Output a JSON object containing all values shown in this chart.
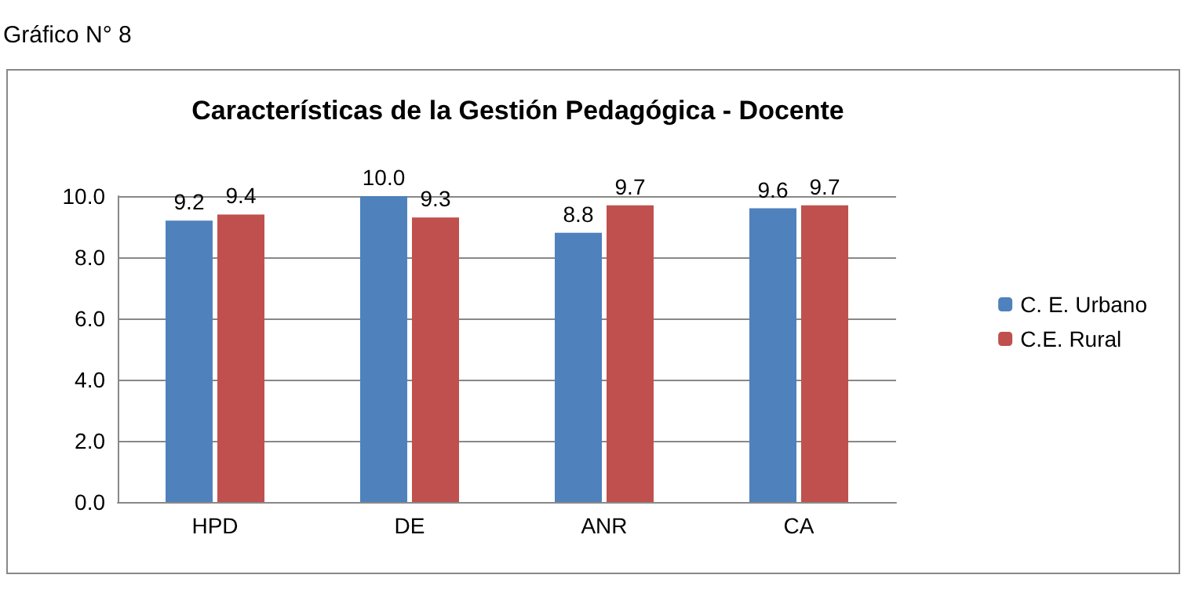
{
  "chart_data": {
    "type": "bar",
    "title": "Características de la Gestión Pedagógica - Docente",
    "annotations": [
      "Gráfico N° 8"
    ],
    "categories": [
      "HPD",
      "DE",
      "ANR",
      "CA"
    ],
    "series": [
      {
        "name": "C. E. Urbano",
        "color": "#4f81bd",
        "values": [
          9.2,
          10.0,
          8.8,
          9.6
        ],
        "value_labels": [
          "9.2",
          "10.0",
          "8.8",
          "9.6"
        ]
      },
      {
        "name": "C.E. Rural",
        "color": "#c0504d",
        "values": [
          9.4,
          9.3,
          9.7,
          9.7
        ],
        "value_labels": [
          "9.4",
          "9.3",
          "9.7",
          "9.7"
        ]
      }
    ],
    "ylim": [
      0,
      10
    ],
    "yticks": [
      {
        "value": 0,
        "label": "0.0"
      },
      {
        "value": 2,
        "label": "2.0"
      },
      {
        "value": 4,
        "label": "4.0"
      },
      {
        "value": 6,
        "label": "6.0"
      },
      {
        "value": 8,
        "label": "8.0"
      },
      {
        "value": 10,
        "label": "10.0"
      }
    ],
    "grid": "y",
    "legend": "right"
  }
}
